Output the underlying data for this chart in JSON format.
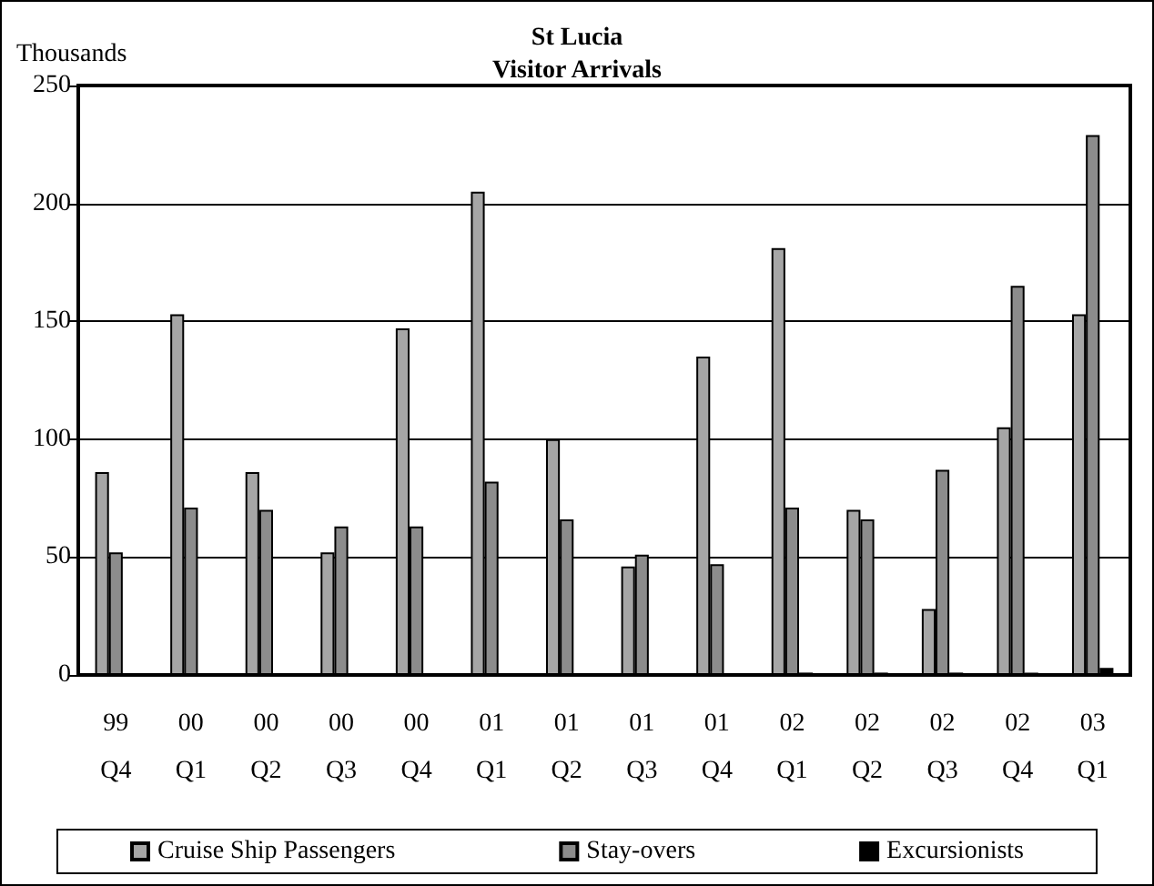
{
  "chart_data": {
    "type": "bar",
    "title": "St Lucia\nVisitor Arrivals",
    "ylabel": "Thousands",
    "categories": [
      "99\nQ4",
      "00\nQ1",
      "00\nQ2",
      "00\nQ3",
      "00\nQ4",
      "01\nQ1",
      "01\nQ2",
      "01\nQ3",
      "01\nQ4",
      "02\nQ1",
      "02\nQ2",
      "02\nQ3",
      "02\nQ4",
      "03\nQ1"
    ],
    "series": [
      {
        "name": "Cruise Ship Passengers",
        "color": "#a6a6a6",
        "values": [
          86,
          153,
          86,
          52,
          147,
          205,
          100,
          46,
          135,
          181,
          70,
          28,
          105,
          153
        ]
      },
      {
        "name": "Stay-overs",
        "color": "#8c8c8c",
        "values": [
          52,
          71,
          70,
          63,
          63,
          82,
          66,
          51,
          47,
          71,
          66,
          87,
          165,
          229
        ]
      },
      {
        "name": "Excursionists",
        "color": "#000000",
        "values": [
          null,
          null,
          null,
          null,
          null,
          null,
          null,
          null,
          null,
          1,
          1,
          1,
          1,
          3
        ]
      }
    ],
    "ylim": [
      0,
      250
    ],
    "yticks": [
      0,
      50,
      100,
      150,
      200,
      250
    ],
    "grid": "y",
    "legend": "bottom"
  }
}
